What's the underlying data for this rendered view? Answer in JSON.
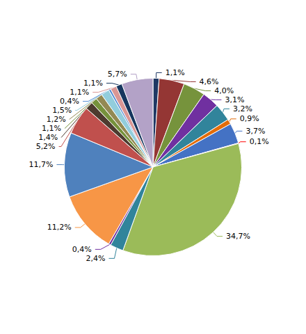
{
  "chart_data": {
    "type": "pie",
    "values": [
      1.1,
      4.6,
      4.0,
      3.1,
      3.2,
      0.9,
      3.7,
      0.1,
      34.7,
      2.4,
      0.4,
      11.2,
      11.7,
      5.2,
      1.4,
      1.1,
      1.2,
      1.5,
      0.4,
      1.1,
      1.1,
      5.7
    ],
    "value_labels": [
      "1,1%",
      "4,6%",
      "4,0%",
      "3,1%",
      "3,2%",
      "0,9%",
      "3,7%",
      "0,1%",
      "34,7%",
      "2,4%",
      "0,4%",
      "11,2%",
      "11,7%",
      "5,2%",
      "1,4%",
      "1,1%",
      "1,2%",
      "1,5%",
      "0,4%",
      "1,1%",
      "1,1%",
      "5,7%"
    ],
    "colors": [
      "#1F3864",
      "#943634",
      "#76933C",
      "#7030A0",
      "#31849B",
      "#E36C09",
      "#4472C4",
      "#FF0000",
      "#9BBB59",
      "#31849B",
      "#7030A0",
      "#F79646",
      "#4F81BD",
      "#C0504D",
      "#4D3B2F",
      "#76923C",
      "#938953",
      "#92CDDC",
      "#558ED5",
      "#D99694",
      "#17375E",
      "#B3A2C7"
    ],
    "data_labels": true
  }
}
